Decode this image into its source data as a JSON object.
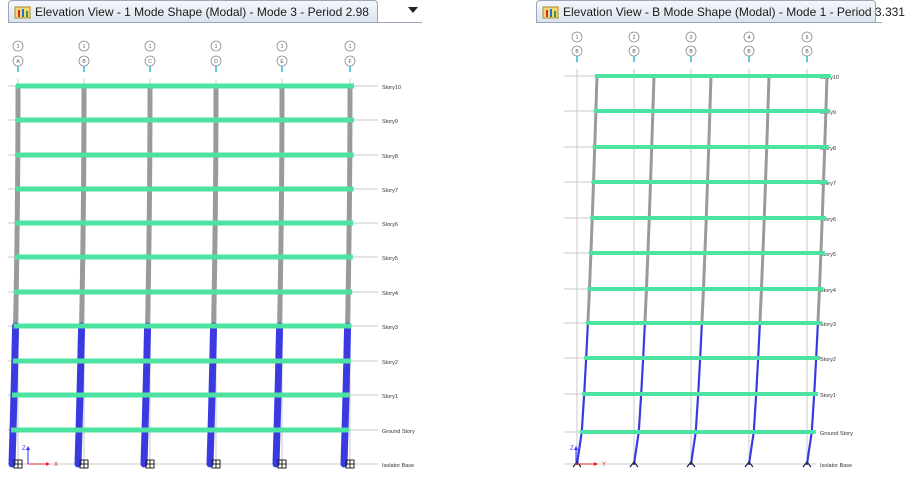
{
  "views": [
    {
      "title": "Elevation View - 1  Mode Shape (Modal) - Mode 3 - Period 2.98",
      "column_bubbles_top": [
        "1",
        "1",
        "1",
        "1",
        "1",
        "1"
      ],
      "column_bubbles_bottom": [
        "A",
        "B",
        "C",
        "D",
        "E",
        "F"
      ],
      "story_labels": [
        "Story10",
        "Story9",
        "Story8",
        "Story7",
        "Story6",
        "Story5",
        "Story4",
        "Story3",
        "Story2",
        "Story1",
        "Ground Story",
        "Isolator Base"
      ],
      "axis_labels": [
        "X",
        "Z"
      ]
    },
    {
      "title": "Elevation View - B  Mode Shape (Modal) - Mode 1 - Period 3.331",
      "column_bubbles_top": [
        "1",
        "2",
        "3",
        "4",
        "5"
      ],
      "column_bubbles_bottom": [
        "B",
        "B",
        "B",
        "B",
        "B"
      ],
      "story_labels": [
        "Story10",
        "Story9",
        "Story8",
        "Story7",
        "Story6",
        "Story5",
        "Story4",
        "Story3",
        "Story2",
        "Story1",
        "Ground Story",
        "Isolator Base"
      ],
      "axis_labels": [
        "Y",
        "Z"
      ]
    }
  ],
  "colors": {
    "beam": "#4ce3a0",
    "column_upper": "#9a9a9a",
    "column_lower": "#3a3ae0",
    "grid": "#c8c8c8",
    "bubble": "#8a8a8a",
    "bubble_tick": "#22b4d8",
    "axis": "#e02020"
  },
  "dropdown_icon": "chevron-down-icon",
  "window_icon": "etabs-window-icon"
}
